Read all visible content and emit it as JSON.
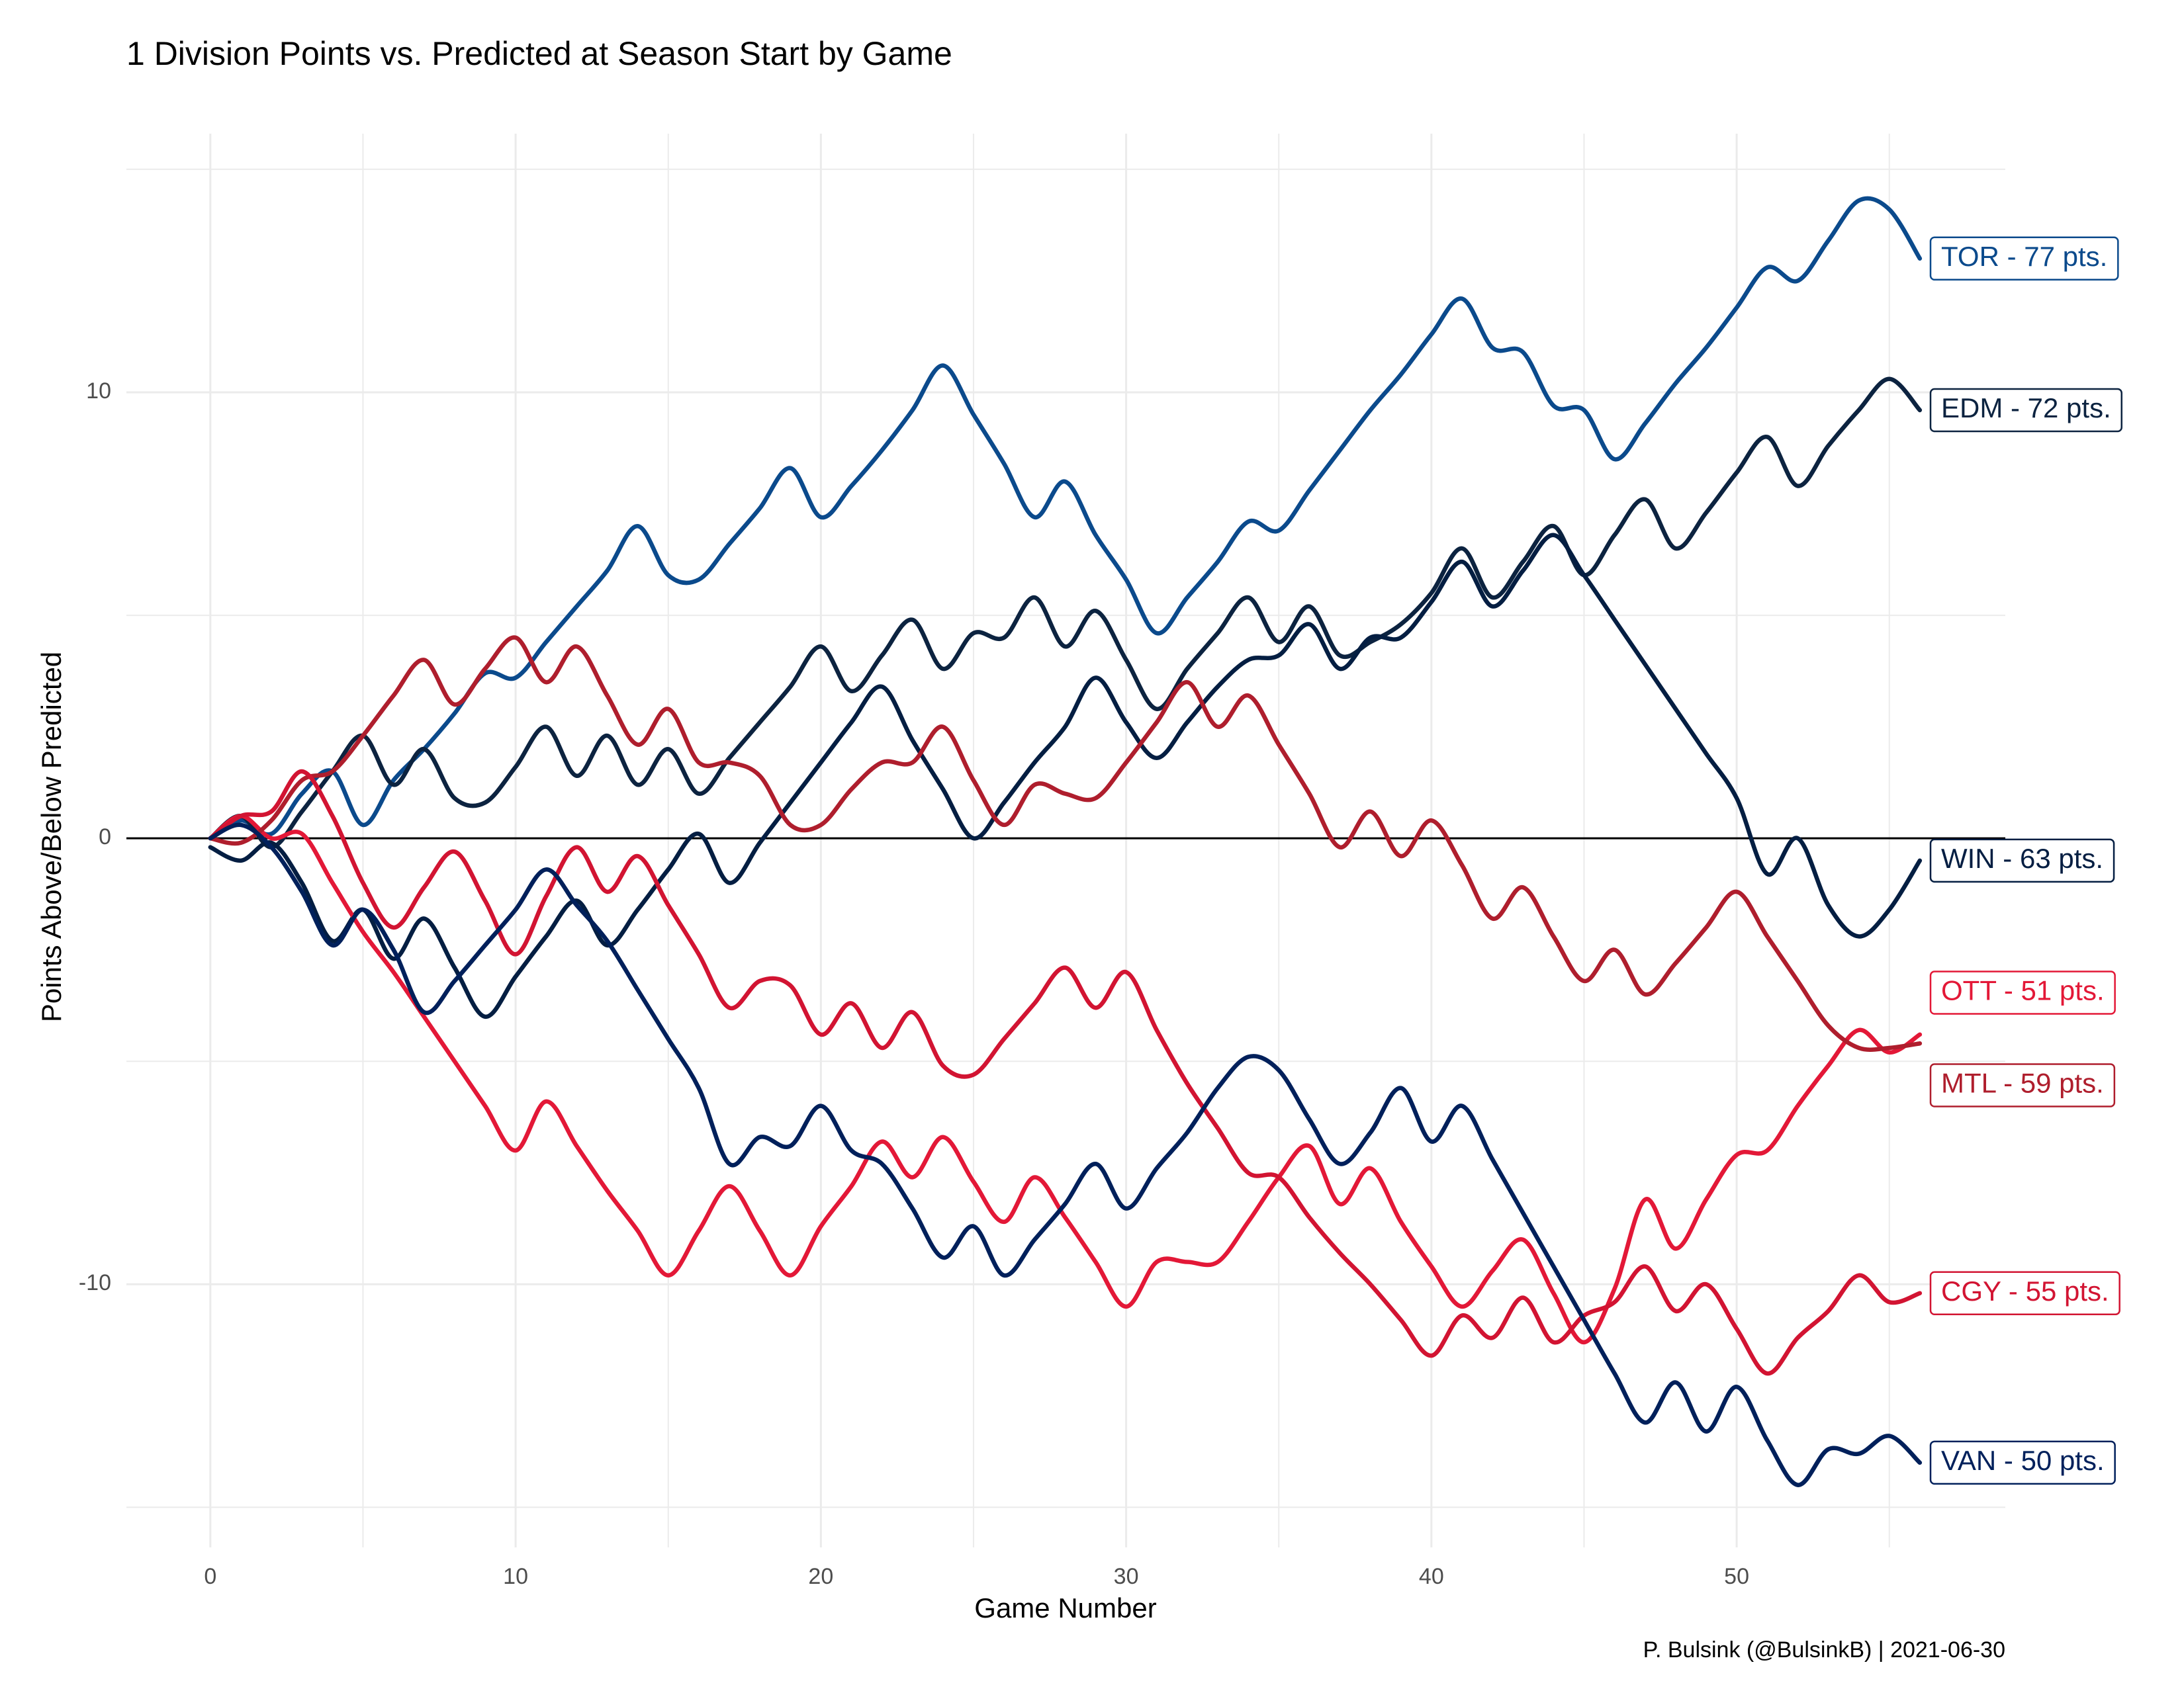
{
  "chart_data": {
    "type": "line",
    "title": "1 Division Points vs. Predicted at Season Start by Game",
    "x_label": "Game Number",
    "y_label": "Points Above/Below Predicted",
    "caption": "P. Bulsink (@BulsinkB) | 2021-06-30",
    "x": [
      0,
      1,
      2,
      3,
      4,
      5,
      6,
      7,
      8,
      9,
      10,
      11,
      12,
      13,
      14,
      15,
      16,
      17,
      18,
      19,
      20,
      21,
      22,
      23,
      24,
      25,
      26,
      27,
      28,
      29,
      30,
      31,
      32,
      33,
      34,
      35,
      36,
      37,
      38,
      39,
      40,
      41,
      42,
      43,
      44,
      45,
      46,
      47,
      48,
      49,
      50,
      51,
      52,
      53,
      54,
      55,
      56
    ],
    "xlim": [
      -2.75,
      58.8
    ],
    "xticks": [
      0,
      10,
      20,
      30,
      40,
      50
    ],
    "ylim": [
      -15.9,
      15.8
    ],
    "yticks": [
      -10,
      0,
      10
    ],
    "hline": 0,
    "grid": true,
    "series": [
      {
        "name": "TOR - 77 pts.",
        "color": "#0B4A8C",
        "values": [
          0,
          0.4,
          0.1,
          1.0,
          1.5,
          0.3,
          1.3,
          2,
          2.8,
          3.7,
          3.6,
          4.4,
          5.2,
          6,
          7,
          5.9,
          5.8,
          6.6,
          7.4,
          8.3,
          7.2,
          7.9,
          8.7,
          9.6,
          10.6,
          9.5,
          8.4,
          7.2,
          8,
          6.8,
          5.8,
          4.6,
          5.4,
          6.2,
          7.1,
          6.9,
          7.8,
          8.7,
          9.6,
          10.4,
          11.3,
          12.1,
          11,
          10.9,
          9.7,
          9.6,
          8.5,
          9.3,
          10.2,
          11,
          11.9,
          12.8,
          12.5,
          13.4,
          14.3,
          14.1,
          13
        ]
      },
      {
        "name": "EDM - 72 pts.",
        "color": "#0C2340",
        "values": [
          0,
          0.5,
          -0.2,
          0.6,
          1.5,
          2.3,
          1.2,
          2,
          0.9,
          0.8,
          1.6,
          2.5,
          1.4,
          2.3,
          1.2,
          2,
          1,
          1.8,
          2.6,
          3.4,
          4.3,
          3.3,
          4.1,
          4.9,
          3.8,
          4.6,
          4.5,
          5.4,
          4.3,
          5.1,
          4,
          2.9,
          3.8,
          4.6,
          5.4,
          4.4,
          5.2,
          4.1,
          4.4,
          4.8,
          5.5,
          6.5,
          5.4,
          6.2,
          7,
          5.9,
          6.8,
          7.6,
          6.5,
          7.3,
          8.2,
          9,
          7.9,
          8.8,
          9.6,
          10.3,
          9.6
        ]
      },
      {
        "name": "WIN - 63 pts.",
        "color": "#041E42",
        "values": [
          -0.2,
          -0.5,
          -0.1,
          -1,
          -2.3,
          -1.6,
          -2.7,
          -1.8,
          -2.9,
          -4,
          -3.1,
          -2.2,
          -1.4,
          -2.4,
          -1.6,
          -0.7,
          0.1,
          -1,
          -0.1,
          0.8,
          1.7,
          2.6,
          3.4,
          2.2,
          1.1,
          0,
          0.8,
          1.7,
          2.5,
          3.6,
          2.6,
          1.8,
          2.6,
          3.4,
          4,
          4.1,
          4.8,
          3.8,
          4.5,
          4.5,
          5.3,
          6.2,
          5.2,
          6,
          6.8,
          5.9,
          4.9,
          3.9,
          2.9,
          1.9,
          0.9,
          -0.8,
          0,
          -1.5,
          -2.2,
          -1.6,
          -0.5
        ]
      },
      {
        "name": "OTT - 51 pts.",
        "color": "#E31837",
        "values": [
          0,
          0.5,
          0,
          0.1,
          -1,
          -2.1,
          -3,
          -4,
          -5,
          -6,
          -7,
          -5.9,
          -6.9,
          -7.9,
          -8.8,
          -9.8,
          -8.8,
          -7.8,
          -8.8,
          -9.8,
          -8.7,
          -7.8,
          -6.8,
          -7.6,
          -6.7,
          -7.7,
          -8.6,
          -7.6,
          -8.5,
          -9.5,
          -10.5,
          -9.5,
          -9.5,
          -9.5,
          -8.6,
          -7.6,
          -6.9,
          -8.2,
          -7.4,
          -8.6,
          -9.6,
          -10.5,
          -9.7,
          -9,
          -10.2,
          -11.3,
          -10.1,
          -8.1,
          -9.2,
          -8.1,
          -7.1,
          -7,
          -6,
          -5.1,
          -4.3,
          -4.8,
          -4.4
        ]
      },
      {
        "name": "MTL - 59 pts.",
        "color": "#AF1E2D",
        "values": [
          0,
          -0.1,
          0.4,
          1.3,
          1.5,
          2.3,
          3.2,
          4,
          3,
          3.8,
          4.5,
          3.5,
          4.3,
          3.2,
          2.1,
          2.9,
          1.7,
          1.7,
          1.4,
          0.3,
          0.3,
          1.1,
          1.7,
          1.7,
          2.5,
          1.3,
          0.3,
          1.2,
          1,
          0.9,
          1.7,
          2.6,
          3.5,
          2.5,
          3.2,
          2.1,
          1,
          -0.2,
          0.6,
          -0.4,
          0.4,
          -0.6,
          -1.8,
          -1.1,
          -2.2,
          -3.2,
          -2.5,
          -3.5,
          -2.8,
          -2,
          -1.2,
          -2.2,
          -3.2,
          -4.2,
          -4.7,
          -4.7,
          -4.6
        ]
      },
      {
        "name": "CGY - 55 pts.",
        "color": "#D21432",
        "values": [
          0,
          0.5,
          0.6,
          1.5,
          0.5,
          -1,
          -2,
          -1.1,
          -0.3,
          -1.4,
          -2.6,
          -1.3,
          -0.2,
          -1.2,
          -0.4,
          -1.5,
          -2.6,
          -3.8,
          -3.2,
          -3.3,
          -4.4,
          -3.7,
          -4.7,
          -3.9,
          -5.1,
          -5.3,
          -4.5,
          -3.7,
          -2.9,
          -3.8,
          -3,
          -4.3,
          -5.5,
          -6.5,
          -7.5,
          -7.6,
          -8.5,
          -9.3,
          -10,
          -10.8,
          -11.6,
          -10.7,
          -11.2,
          -10.3,
          -11.3,
          -10.7,
          -10.4,
          -9.6,
          -10.6,
          -10,
          -11,
          -12,
          -11.2,
          -10.6,
          -9.8,
          -10.4,
          -10.2
        ]
      },
      {
        "name": "VAN - 50 pts.",
        "color": "#00205B",
        "values": [
          0,
          0.3,
          -0.2,
          -1.2,
          -2.4,
          -1.6,
          -2.5,
          -3.9,
          -3.2,
          -2.4,
          -1.6,
          -0.7,
          -1.5,
          -2.3,
          -3.4,
          -4.5,
          -5.6,
          -7.3,
          -6.7,
          -6.9,
          -6,
          -7,
          -7.3,
          -8.3,
          -9.4,
          -8.7,
          -9.8,
          -9,
          -8.2,
          -7.3,
          -8.3,
          -7.4,
          -6.6,
          -5.6,
          -4.9,
          -5.2,
          -6.3,
          -7.3,
          -6.6,
          -5.6,
          -6.8,
          -6,
          -7.2,
          -8.4,
          -9.6,
          -10.8,
          -12,
          -13.1,
          -12.2,
          -13.3,
          -12.3,
          -13.5,
          -14.5,
          -13.7,
          -13.8,
          -13.4,
          -14
        ]
      }
    ]
  }
}
